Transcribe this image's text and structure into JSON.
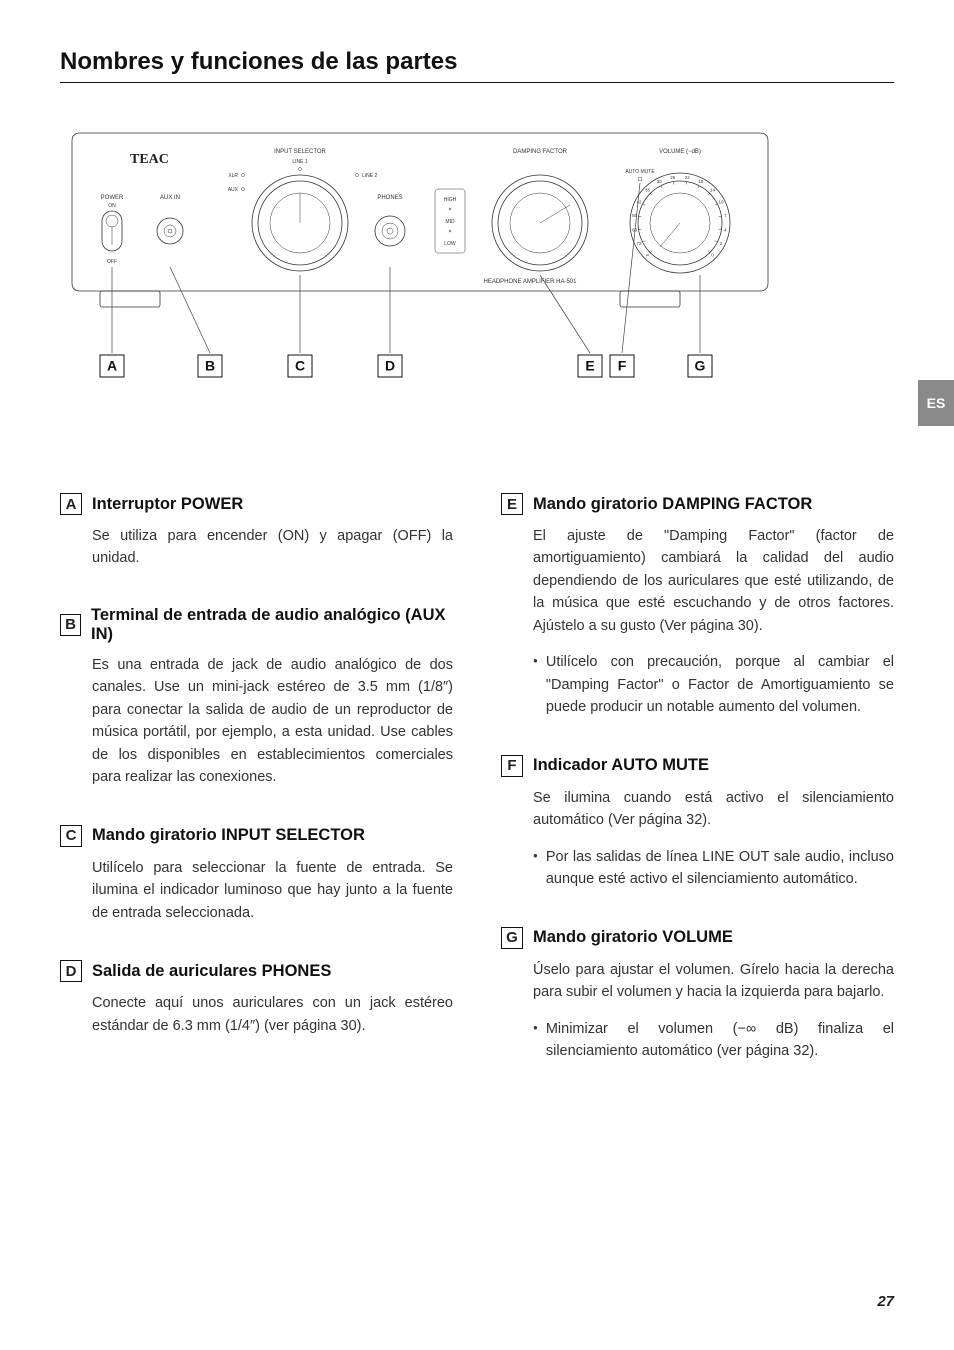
{
  "page": {
    "title": "Nombres y funciones de las partes",
    "lang_tab": "ES",
    "page_number": "27"
  },
  "diagram": {
    "brand": "TEAC",
    "model_line": "HEADPHONE AMPLIFIER HA-501",
    "labels": {
      "power": "POWER",
      "on": "ON",
      "off": "OFF",
      "aux_in": "AUX IN",
      "input_selector": "INPUT SELECTOR",
      "line1": "LINE 1",
      "line2": "LINE 2",
      "xlr": "XLR",
      "aux": "AUX",
      "phones": "PHONES",
      "damping_factor": "DAMPING FACTOR",
      "high": "HIGH",
      "mid": "MID",
      "low": "LOW",
      "auto_mute": "AUTO MUTE",
      "volume": "VOLUME (−dB)"
    },
    "volume_ticks": [
      "∞",
      "72",
      "60",
      "50",
      "42",
      "36",
      "30",
      "26",
      "22",
      "18",
      "14",
      "10",
      "7",
      "4",
      "2",
      "0"
    ],
    "callouts": [
      "A",
      "B",
      "C",
      "D",
      "E",
      "F",
      "G"
    ]
  },
  "sections": {
    "A": {
      "title": "Interruptor POWER",
      "body": "Se utiliza para encender (ON) y apagar (OFF) la unidad."
    },
    "B": {
      "title": "Terminal de entrada de audio analógico (AUX IN)",
      "body": "Es una entrada de jack de audio analógico de dos canales.\nUse un mini-jack estéreo de 3.5 mm (1/8″) para conectar la salida de audio de un reproductor de música portátil, por ejemplo, a esta unidad.\nUse cables de los disponibles en establecimientos comerciales para realizar las conexiones."
    },
    "C": {
      "title": "Mando giratorio INPUT SELECTOR",
      "body": "Utilícelo para seleccionar la fuente de entrada. Se ilumina el indicador luminoso que hay junto a la fuente de entrada seleccionada."
    },
    "D": {
      "title": "Salida de auriculares PHONES",
      "body": "Conecte aquí unos auriculares con un jack estéreo estándar de 6.3 mm (1/4″) (ver página 30)."
    },
    "E": {
      "title": "Mando giratorio DAMPING FACTOR",
      "body": "El ajuste de \"Damping Factor\" (factor de amortiguamiento) cambiará la calidad del audio dependiendo de los auriculares que esté utilizando, de la música que esté escuchando y de otros factores. Ajústelo a su gusto (Ver página 30).",
      "bullet": "Utilícelo con precaución, porque al cambiar el \"Damping Factor\" o Factor de Amortiguamiento se puede producir un notable aumento del volumen."
    },
    "F": {
      "title": "Indicador AUTO MUTE",
      "body": "Se ilumina cuando está activo el silenciamiento automático (Ver página 32).",
      "bullet": "Por las salidas de línea LINE OUT sale audio, incluso aunque esté activo el silenciamiento automático."
    },
    "G": {
      "title": "Mando giratorio VOLUME",
      "body": "Úselo para ajustar el volumen. Gírelo hacia la derecha para subir el volumen y hacia la izquierda para bajarlo.",
      "bullet": "Minimizar el volumen (−∞ dB) finaliza el silenciamiento automático (ver página 32)."
    }
  }
}
